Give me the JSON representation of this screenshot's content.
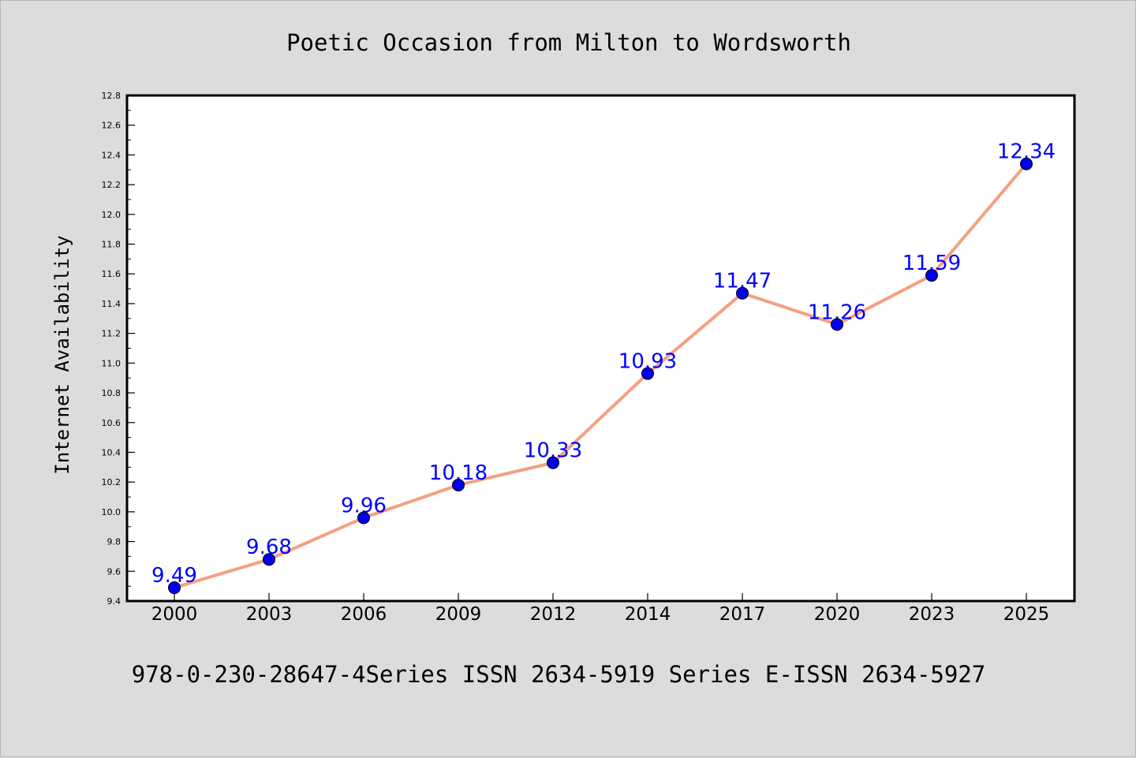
{
  "chart_data": {
    "type": "line",
    "title": "Poetic Occasion from Milton to Wordsworth",
    "xlabel": "",
    "ylabel": "Internet Availability",
    "categories": [
      "2000",
      "2003",
      "2006",
      "2009",
      "2012",
      "2014",
      "2017",
      "2020",
      "2023",
      "2025"
    ],
    "values": [
      9.49,
      9.68,
      9.96,
      10.18,
      10.33,
      10.93,
      11.47,
      11.26,
      11.59,
      12.34
    ],
    "data_labels": [
      "9.49",
      "9.68",
      "9.96",
      "10.18",
      "10.33",
      "10.93",
      "11.47",
      "11.26",
      "11.59",
      "12.34"
    ],
    "ylim": [
      9.4,
      12.8
    ],
    "yticks": [
      "9.4",
      "9.6",
      "9.8",
      "10.0",
      "10.2",
      "10.4",
      "10.6",
      "10.8",
      "11.0",
      "11.2",
      "11.4",
      "11.6",
      "11.8",
      "12.0",
      "12.2",
      "12.4",
      "12.6",
      "12.8"
    ],
    "grid": false,
    "legend": "none",
    "colors": {
      "line": "#f4a07f",
      "marker": "#0000ee",
      "data_label": "#0000ff",
      "background": "#dcdcdc",
      "plot_background": "#ffffff"
    }
  },
  "footer": {
    "text": "978-0-230-28647-4Series ISSN 2634-5919 Series E-ISSN 2634-5927"
  }
}
